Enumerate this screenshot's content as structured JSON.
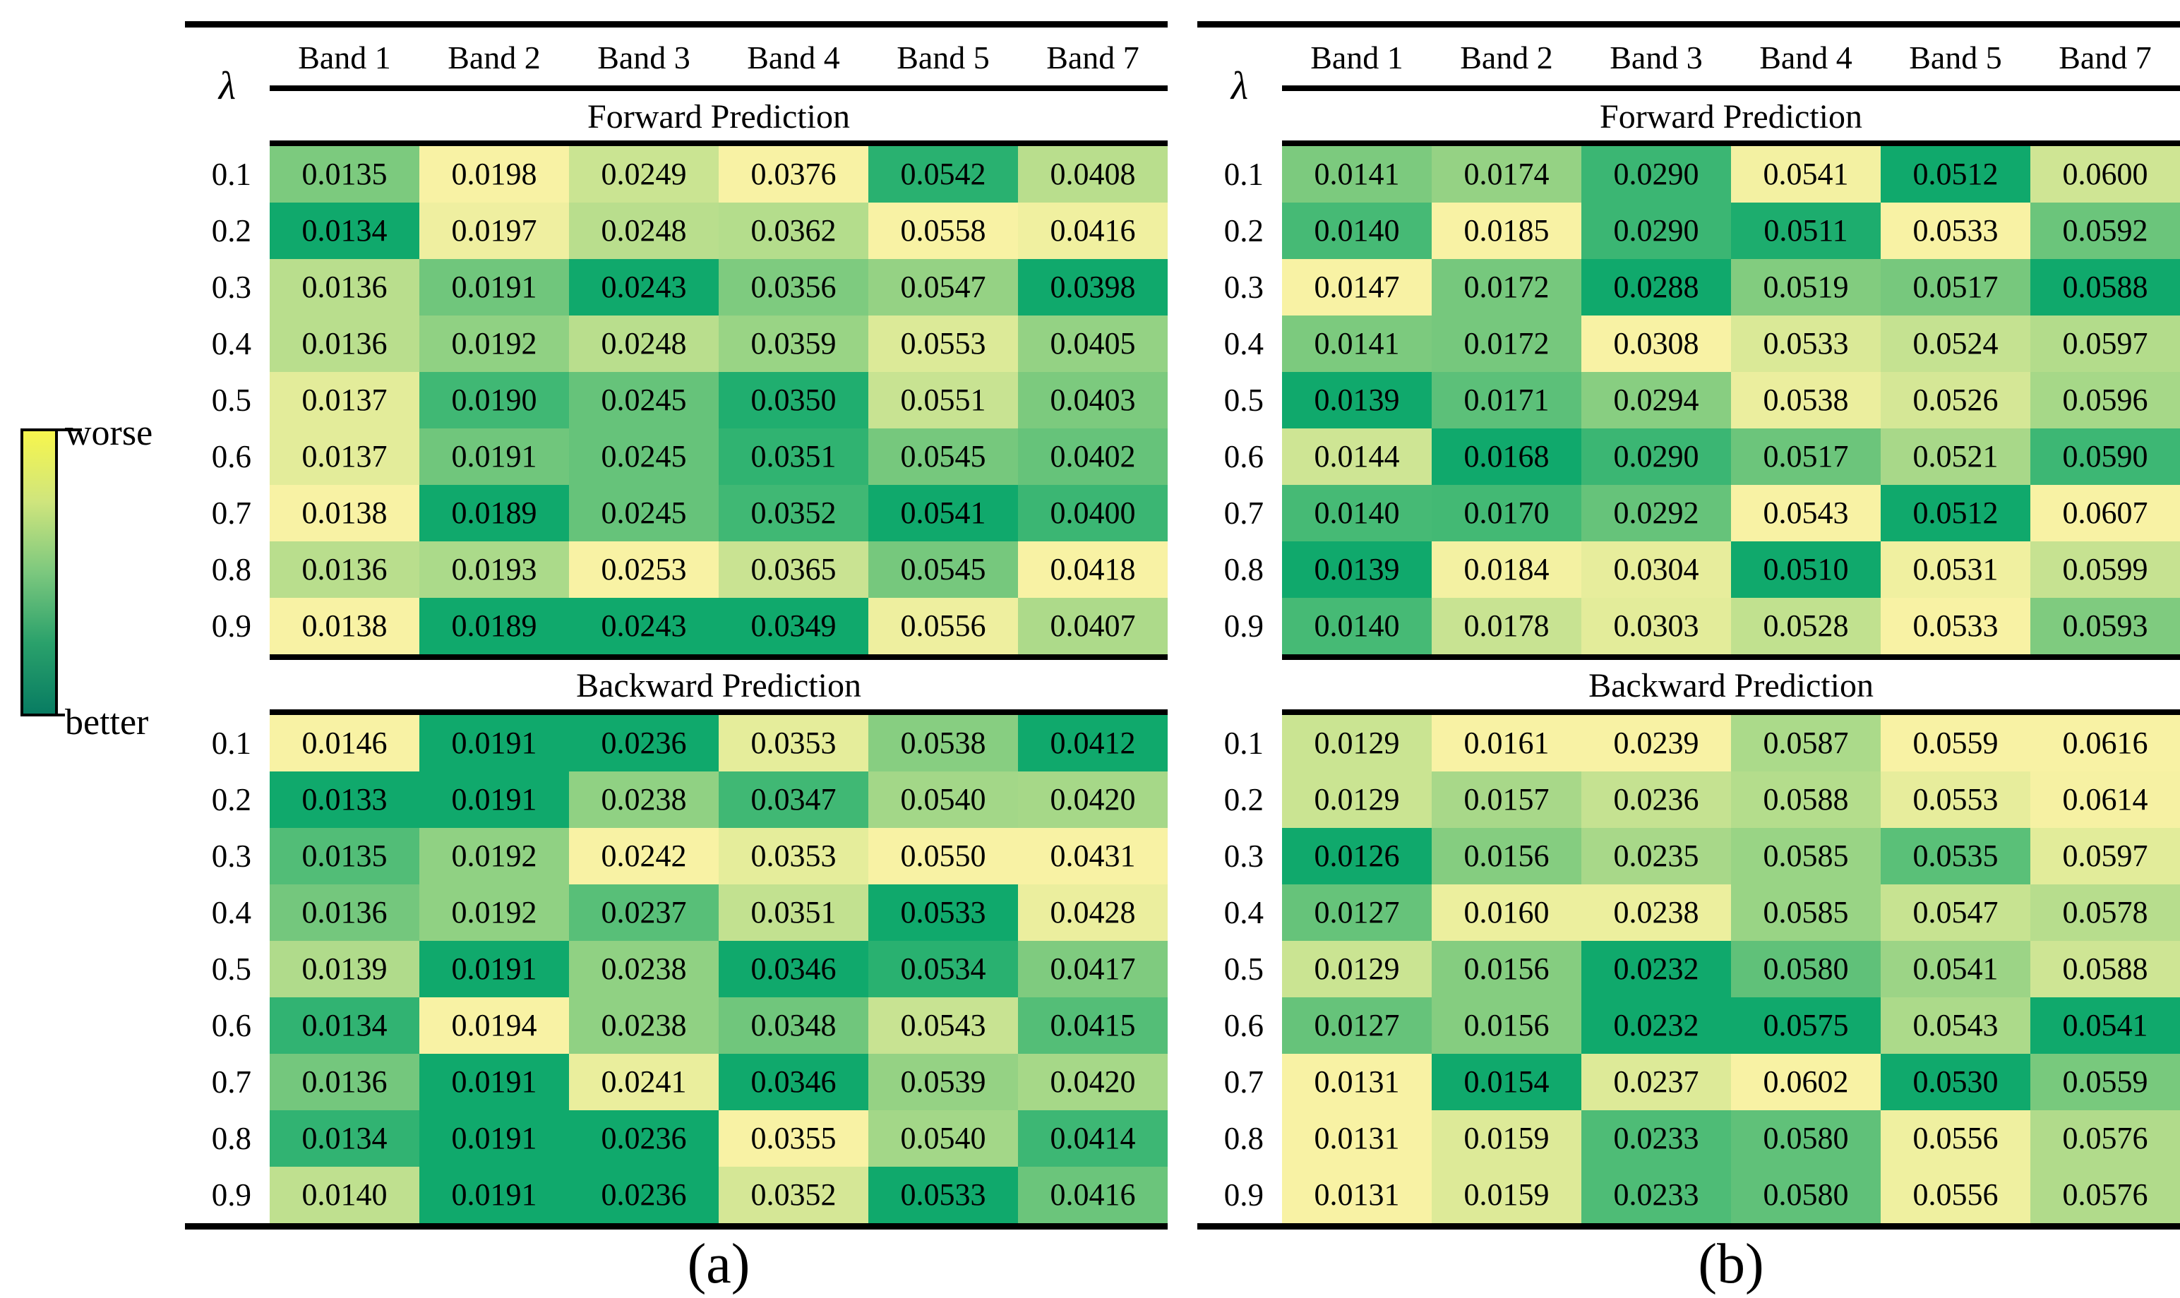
{
  "legend": {
    "worse_label": "worse",
    "better_label": "better"
  },
  "colors": {
    "cell_scale": [
      "#10a96c",
      "#7cca7e",
      "#b9de8d",
      "#e3ec9a",
      "#f8f2a4"
    ],
    "legend_stops": [
      "#f7f64d",
      "#cfe57d",
      "#7cc87e",
      "#2aa16b",
      "#087c62"
    ],
    "rule": "#000000",
    "text": "#000000"
  },
  "chart_data": {
    "type": "heatmap",
    "row_axis_symbol": "λ",
    "columns": [
      "Band 1",
      "Band 2",
      "Band 3",
      "Band 4",
      "Band 5",
      "Band 7"
    ],
    "row_labels": [
      "0.1",
      "0.2",
      "0.3",
      "0.4",
      "0.5",
      "0.6",
      "0.7",
      "0.8",
      "0.9"
    ],
    "color_mapping": "per-column min-max within each section; low value = green (better), high value = pale yellow (worse)",
    "panels": [
      {
        "label": "(a)",
        "sections": [
          {
            "title": "Forward Prediction",
            "values": [
              [
                "0.0135",
                "0.0198",
                "0.0249",
                "0.0376",
                "0.0542",
                "0.0408"
              ],
              [
                "0.0134",
                "0.0197",
                "0.0248",
                "0.0362",
                "0.0558",
                "0.0416"
              ],
              [
                "0.0136",
                "0.0191",
                "0.0243",
                "0.0356",
                "0.0547",
                "0.0398"
              ],
              [
                "0.0136",
                "0.0192",
                "0.0248",
                "0.0359",
                "0.0553",
                "0.0405"
              ],
              [
                "0.0137",
                "0.0190",
                "0.0245",
                "0.0350",
                "0.0551",
                "0.0403"
              ],
              [
                "0.0137",
                "0.0191",
                "0.0245",
                "0.0351",
                "0.0545",
                "0.0402"
              ],
              [
                "0.0138",
                "0.0189",
                "0.0245",
                "0.0352",
                "0.0541",
                "0.0400"
              ],
              [
                "0.0136",
                "0.0193",
                "0.0253",
                "0.0365",
                "0.0545",
                "0.0418"
              ],
              [
                "0.0138",
                "0.0189",
                "0.0243",
                "0.0349",
                "0.0556",
                "0.0407"
              ]
            ]
          },
          {
            "title": "Backward Prediction",
            "values": [
              [
                "0.0146",
                "0.0191",
                "0.0236",
                "0.0353",
                "0.0538",
                "0.0412"
              ],
              [
                "0.0133",
                "0.0191",
                "0.0238",
                "0.0347",
                "0.0540",
                "0.0420"
              ],
              [
                "0.0135",
                "0.0192",
                "0.0242",
                "0.0353",
                "0.0550",
                "0.0431"
              ],
              [
                "0.0136",
                "0.0192",
                "0.0237",
                "0.0351",
                "0.0533",
                "0.0428"
              ],
              [
                "0.0139",
                "0.0191",
                "0.0238",
                "0.0346",
                "0.0534",
                "0.0417"
              ],
              [
                "0.0134",
                "0.0194",
                "0.0238",
                "0.0348",
                "0.0543",
                "0.0415"
              ],
              [
                "0.0136",
                "0.0191",
                "0.0241",
                "0.0346",
                "0.0539",
                "0.0420"
              ],
              [
                "0.0134",
                "0.0191",
                "0.0236",
                "0.0355",
                "0.0540",
                "0.0414"
              ],
              [
                "0.0140",
                "0.0191",
                "0.0236",
                "0.0352",
                "0.0533",
                "0.0416"
              ]
            ]
          }
        ]
      },
      {
        "label": "(b)",
        "sections": [
          {
            "title": "Forward Prediction",
            "values": [
              [
                "0.0141",
                "0.0174",
                "0.0290",
                "0.0541",
                "0.0512",
                "0.0600"
              ],
              [
                "0.0140",
                "0.0185",
                "0.0290",
                "0.0511",
                "0.0533",
                "0.0592"
              ],
              [
                "0.0147",
                "0.0172",
                "0.0288",
                "0.0519",
                "0.0517",
                "0.0588"
              ],
              [
                "0.0141",
                "0.0172",
                "0.0308",
                "0.0533",
                "0.0524",
                "0.0597"
              ],
              [
                "0.0139",
                "0.0171",
                "0.0294",
                "0.0538",
                "0.0526",
                "0.0596"
              ],
              [
                "0.0144",
                "0.0168",
                "0.0290",
                "0.0517",
                "0.0521",
                "0.0590"
              ],
              [
                "0.0140",
                "0.0170",
                "0.0292",
                "0.0543",
                "0.0512",
                "0.0607"
              ],
              [
                "0.0139",
                "0.0184",
                "0.0304",
                "0.0510",
                "0.0531",
                "0.0599"
              ],
              [
                "0.0140",
                "0.0178",
                "0.0303",
                "0.0528",
                "0.0533",
                "0.0593"
              ]
            ]
          },
          {
            "title": "Backward Prediction",
            "values": [
              [
                "0.0129",
                "0.0161",
                "0.0239",
                "0.0587",
                "0.0559",
                "0.0616"
              ],
              [
                "0.0129",
                "0.0157",
                "0.0236",
                "0.0588",
                "0.0553",
                "0.0614"
              ],
              [
                "0.0126",
                "0.0156",
                "0.0235",
                "0.0585",
                "0.0535",
                "0.0597"
              ],
              [
                "0.0127",
                "0.0160",
                "0.0238",
                "0.0585",
                "0.0547",
                "0.0578"
              ],
              [
                "0.0129",
                "0.0156",
                "0.0232",
                "0.0580",
                "0.0541",
                "0.0588"
              ],
              [
                "0.0127",
                "0.0156",
                "0.0232",
                "0.0575",
                "0.0543",
                "0.0541"
              ],
              [
                "0.0131",
                "0.0154",
                "0.0237",
                "0.0602",
                "0.0530",
                "0.0559"
              ],
              [
                "0.0131",
                "0.0159",
                "0.0233",
                "0.0580",
                "0.0556",
                "0.0576"
              ],
              [
                "0.0131",
                "0.0159",
                "0.0233",
                "0.0580",
                "0.0556",
                "0.0576"
              ]
            ]
          }
        ]
      }
    ]
  }
}
